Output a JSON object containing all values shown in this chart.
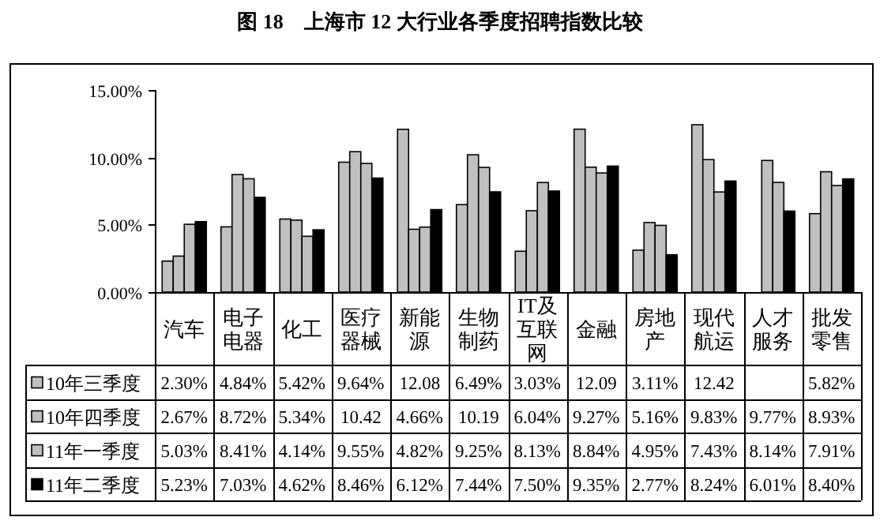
{
  "chart_data": {
    "type": "bar",
    "title": "图 18　上海市 12 大行业各季度招聘指数比较",
    "categories": [
      "汽车",
      "电子电器",
      "化工",
      "医疗器械",
      "新能源",
      "生物制药",
      "IT及互联网",
      "金融",
      "房地产",
      "现代航运",
      "人才服务",
      "批发零售"
    ],
    "series": [
      {
        "name": "10年三季度",
        "color": "#c0c0c0",
        "values": [
          2.3,
          4.84,
          5.42,
          9.64,
          12.08,
          6.49,
          3.03,
          12.09,
          3.11,
          12.42,
          null,
          5.82
        ],
        "value_labels": [
          "2.30%",
          "4.84%",
          "5.42%",
          "9.64%",
          "12.08",
          "6.49%",
          "3.03%",
          "12.09",
          "3.11%",
          "12.42",
          null,
          "5.82%"
        ]
      },
      {
        "name": "10年四季度",
        "color": "#c0c0c0",
        "values": [
          2.67,
          8.72,
          5.34,
          10.42,
          4.66,
          10.19,
          6.04,
          9.27,
          5.16,
          9.83,
          9.77,
          8.93
        ],
        "value_labels": [
          "2.67%",
          "8.72%",
          "5.34%",
          "10.42",
          "4.66%",
          "10.19",
          "6.04%",
          "9.27%",
          "5.16%",
          "9.83%",
          "9.77%",
          "8.93%"
        ]
      },
      {
        "name": "11年一季度",
        "color": "#c0c0c0",
        "values": [
          5.03,
          8.41,
          4.14,
          9.55,
          4.82,
          9.25,
          8.13,
          8.84,
          4.95,
          7.43,
          8.14,
          7.91
        ],
        "value_labels": [
          "5.03%",
          "8.41%",
          "4.14%",
          "9.55%",
          "4.82%",
          "9.25%",
          "8.13%",
          "8.84%",
          "4.95%",
          "7.43%",
          "8.14%",
          "7.91%"
        ]
      },
      {
        "name": "11年二季度",
        "color": "#000000",
        "values": [
          5.23,
          7.03,
          4.62,
          8.46,
          6.12,
          7.44,
          7.5,
          9.35,
          2.77,
          8.24,
          6.01,
          8.4
        ],
        "value_labels": [
          "5.23%",
          "7.03%",
          "4.62%",
          "8.46%",
          "6.12%",
          "7.44%",
          "7.50%",
          "9.35%",
          "2.77%",
          "8.24%",
          "6.01%",
          "8.40%"
        ]
      }
    ],
    "ylim": [
      0,
      15
    ],
    "yticks": [
      {
        "value": 0,
        "label": "0.00%"
      },
      {
        "value": 5,
        "label": "5.00%"
      },
      {
        "value": 10,
        "label": "10.00%"
      },
      {
        "value": 15,
        "label": "15.00%"
      }
    ],
    "legend": "bottom"
  }
}
